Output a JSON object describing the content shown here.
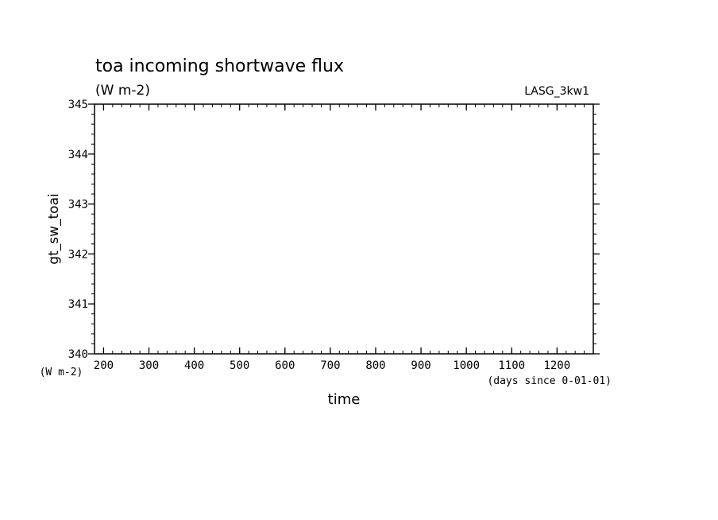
{
  "chart_data": {
    "type": "line",
    "title": "toa incoming shortwave flux",
    "subtitle": "(W m-2)",
    "label_right": "LASG_3kw1",
    "ylabel": "gt_sw_toai",
    "yunit": "(W m-2)",
    "xlabel": "time",
    "xunit": "(days since 0-01-01)",
    "xlim": [
      180,
      1280
    ],
    "ylim": [
      340,
      345
    ],
    "x_ticks": [
      200,
      300,
      400,
      500,
      600,
      700,
      800,
      900,
      1000,
      1100,
      1200
    ],
    "y_ticks": [
      340,
      341,
      342,
      343,
      344,
      345
    ],
    "x_minor_step": 20,
    "y_minor_step": 0.2,
    "grid": false,
    "series": []
  }
}
